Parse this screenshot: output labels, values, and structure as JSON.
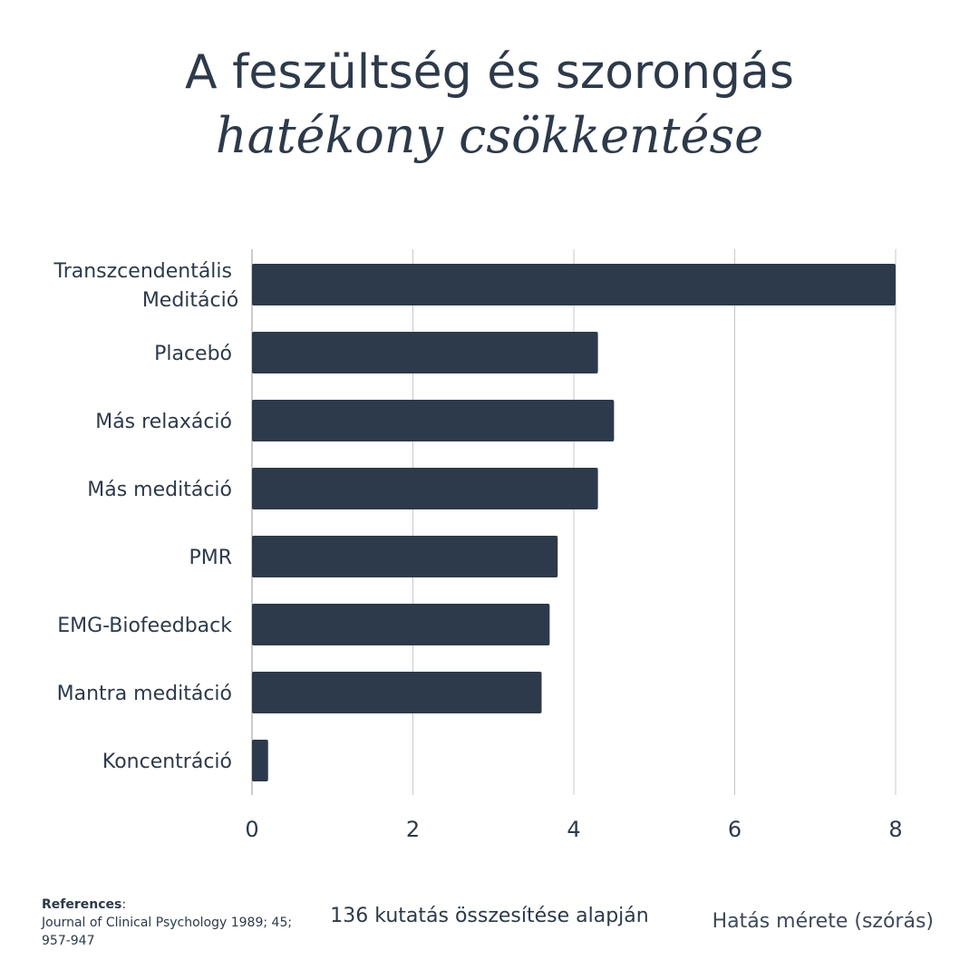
{
  "title": {
    "line1": "A feszültség és szorongás",
    "line2": "hatékony csökkentése"
  },
  "chart_data": {
    "type": "bar",
    "orientation": "horizontal",
    "categories": [
      [
        "Transzcendentális",
        "Meditáció"
      ],
      [
        "Placebó"
      ],
      [
        "Más relaxáció"
      ],
      [
        "Más meditáció"
      ],
      [
        "PMR"
      ],
      [
        "EMG-Biofeedback"
      ],
      [
        "Mantra meditáció"
      ],
      [
        "Koncentráció"
      ]
    ],
    "values": [
      8.0,
      4.3,
      4.5,
      4.3,
      3.8,
      3.7,
      3.6,
      0.2
    ],
    "xlim": [
      0,
      8
    ],
    "xticks": [
      0,
      2,
      4,
      6,
      8
    ],
    "xlabel": "Hatás mérete (szórás)",
    "grid": true,
    "bar_color": "#2c3a4b",
    "grid_color": "#c8c8c8"
  },
  "footer": {
    "references_label": "References",
    "references_colon": ":",
    "references_text": "Journal of Clinical Psychology 1989; 45; 957-947",
    "note": "136 kutatás összesítése alapján",
    "axis_title": "Hatás mérete (szórás)"
  }
}
